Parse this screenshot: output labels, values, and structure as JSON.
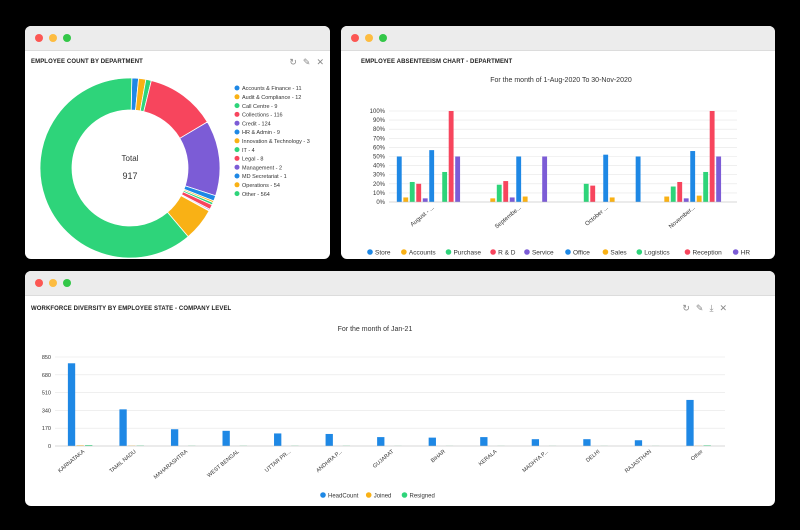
{
  "windows": {
    "dept": {
      "title": "EMPLOYEE COUNT BY DEPARTMENT",
      "center_label": "Total",
      "center_value": "917",
      "tools": {
        "refresh": "↻",
        "edit": "✎",
        "close": "✕"
      }
    },
    "absent": {
      "title": "EMPLOYEE ABSENTEEISM CHART - DEPARTMENT",
      "subtitle": "For the month of 1-Aug-2020 To 30-Nov-2020"
    },
    "diversity": {
      "title": "WORKFORCE DIVERSITY BY EMPLOYEE STATE - COMPANY LEVEL",
      "subtitle": "For the month of Jan-21",
      "tools": {
        "refresh": "↻",
        "edit": "✎",
        "download": "⤓",
        "close": "✕"
      }
    }
  },
  "chart_data": [
    {
      "type": "pie",
      "title": "EMPLOYEE COUNT BY DEPARTMENT",
      "legend": "right",
      "slices": [
        {
          "label": "Accounts & Finance - 11",
          "value": 11,
          "color": "#1e88e5"
        },
        {
          "label": "Audit & Compliance - 12",
          "value": 12,
          "color": "#f9b115"
        },
        {
          "label": "Call Centre - 9",
          "value": 9,
          "color": "#2ed47a"
        },
        {
          "label": "Collections - 116",
          "value": 116,
          "color": "#f7455d"
        },
        {
          "label": "Credit - 124",
          "value": 124,
          "color": "#7c5cd6"
        },
        {
          "label": "HR & Admin - 9",
          "value": 9,
          "color": "#1e88e5"
        },
        {
          "label": "Innovation & Technology - 3",
          "value": 3,
          "color": "#f9b115"
        },
        {
          "label": "IT - 4",
          "value": 4,
          "color": "#2ed47a"
        },
        {
          "label": "Legal - 8",
          "value": 8,
          "color": "#f7455d"
        },
        {
          "label": "Management - 2",
          "value": 2,
          "color": "#7c5cd6"
        },
        {
          "label": "MD Secretariat - 1",
          "value": 1,
          "color": "#1e88e5"
        },
        {
          "label": "Operations - 54",
          "value": 54,
          "color": "#f9b115"
        },
        {
          "label": "Other - 564",
          "value": 564,
          "color": "#2ed47a"
        }
      ]
    },
    {
      "type": "bar",
      "title": "EMPLOYEE ABSENTEEISM CHART - DEPARTMENT",
      "subtitle": "For the month of 1-Aug-2020 To 30-Nov-2020",
      "ylim": [
        0,
        100
      ],
      "yticks": [
        "0%",
        "10%",
        "20%",
        "30%",
        "40%",
        "50%",
        "60%",
        "70%",
        "80%",
        "90%",
        "100%"
      ],
      "categories": [
        "August - ...",
        "Septembe...",
        "October ...",
        "November..."
      ],
      "legend": "bottom",
      "series": [
        {
          "name": "Store",
          "color": "#1e88e5",
          "values": [
            50,
            0,
            0,
            0
          ]
        },
        {
          "name": "Accounts",
          "color": "#f9b115",
          "values": [
            5,
            4,
            0,
            6
          ]
        },
        {
          "name": "Purchase",
          "color": "#2ed47a",
          "values": [
            22,
            19,
            20,
            17
          ]
        },
        {
          "name": "R & D",
          "color": "#f7455d",
          "values": [
            20,
            23,
            18,
            22
          ]
        },
        {
          "name": "Service",
          "color": "#7c5cd6",
          "values": [
            4,
            5,
            0,
            4
          ]
        },
        {
          "name": "Office",
          "color": "#1e88e5",
          "values": [
            57,
            50,
            52,
            56
          ]
        },
        {
          "name": "Sales",
          "color": "#f9b115",
          "values": [
            0,
            6,
            5,
            7
          ]
        },
        {
          "name": "Logistics",
          "color": "#2ed47a",
          "values": [
            33,
            0,
            0,
            33
          ]
        },
        {
          "name": "Reception",
          "color": "#f7455d",
          "values": [
            100,
            0,
            0,
            100
          ]
        },
        {
          "name": "HR",
          "color": "#7c5cd6",
          "values": [
            50,
            50,
            0,
            50
          ]
        }
      ],
      "extra_bars_note": "",
      "last_bar_extra": [
        0,
        0,
        50,
        0
      ]
    },
    {
      "type": "bar",
      "title": "WORKFORCE DIVERSITY BY EMPLOYEE STATE - COMPANY LEVEL",
      "subtitle": "For the month of Jan-21",
      "ylim": [
        0,
        850
      ],
      "yticks": [
        "0",
        "170",
        "340",
        "510",
        "680",
        "850"
      ],
      "categories": [
        "KARNATAKA",
        "TAMIL NADU",
        "MAHARASHTRA",
        "WEST BENGAL",
        "UTTAR PR...",
        "ANDHRA P...",
        "GUJARAT",
        "BIHAR",
        "KERALA",
        "MADHYA P...",
        "DELHI",
        "RAJASTHAN",
        "Other"
      ],
      "legend": "bottom",
      "series": [
        {
          "name": "HeadCount",
          "color": "#1e88e5",
          "values": [
            790,
            350,
            160,
            145,
            120,
            115,
            85,
            80,
            85,
            65,
            65,
            55,
            440
          ]
        },
        {
          "name": "Joined",
          "color": "#f9b115",
          "values": [
            6,
            3,
            0,
            0,
            0,
            0,
            0,
            0,
            0,
            0,
            0,
            0,
            2
          ]
        },
        {
          "name": "Resigned",
          "color": "#2ed47a",
          "values": [
            8,
            4,
            2,
            2,
            2,
            2,
            1,
            1,
            1,
            1,
            1,
            1,
            6
          ]
        }
      ]
    }
  ]
}
